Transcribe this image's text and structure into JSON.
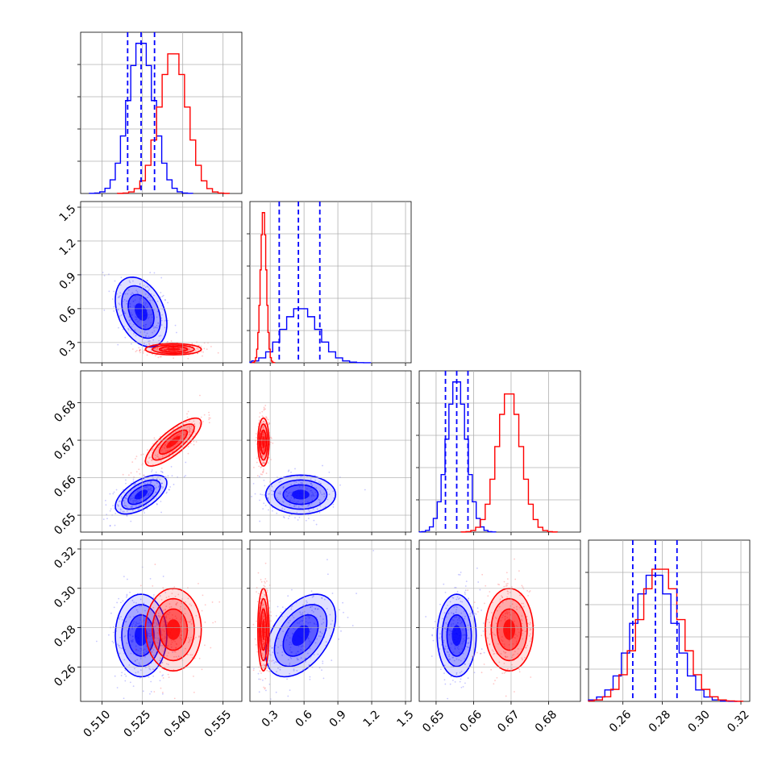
{
  "chart_data": {
    "type": "corner",
    "title": "",
    "grid": true,
    "parameters": [
      {
        "index": 0,
        "range": [
          0.502,
          0.562
        ],
        "ticks": [
          0.51,
          0.525,
          0.54,
          0.555
        ],
        "tick_labels": [
          "0.510",
          "0.525",
          "0.540",
          "0.555"
        ]
      },
      {
        "index": 1,
        "range": [
          0.12,
          1.55
        ],
        "ticks": [
          0.3,
          0.6,
          0.9,
          1.2,
          1.5
        ],
        "tick_labels": [
          "0.3",
          "0.6",
          "0.9",
          "1.2",
          "1.5"
        ]
      },
      {
        "index": 2,
        "range": [
          0.6455,
          0.6885
        ],
        "ticks": [
          0.65,
          0.66,
          0.67,
          0.68
        ],
        "tick_labels": [
          "0.65",
          "0.66",
          "0.67",
          "0.68"
        ]
      },
      {
        "index": 3,
        "range": [
          0.2425,
          0.3245
        ],
        "ticks": [
          0.26,
          0.28,
          0.3,
          0.32
        ],
        "tick_labels": [
          "0.26",
          "0.28",
          "0.30",
          "0.32"
        ]
      }
    ],
    "series": [
      {
        "color": "#0000ff",
        "means": [
          0.5245,
          0.57,
          0.6555,
          0.276
        ],
        "stds": [
          0.0048,
          0.155,
          0.0026,
          0.0105
        ],
        "quantiles": [
          [
            0.5195,
            0.5245,
            0.5295
          ],
          [
            0.38,
            0.55,
            0.74
          ],
          [
            0.6525,
            0.6555,
            0.6585
          ],
          [
            0.265,
            0.2765,
            0.2875
          ]
        ],
        "correlations": {
          "0-1": -0.35,
          "0-2": 0.6,
          "0-3": 0.0,
          "1-2": 0.0,
          "1-3": 0.45,
          "2-3": 0.0
        },
        "hist_peak": [
          1.0,
          0.36,
          1.0,
          0.84
        ]
      },
      {
        "color": "#ff0000",
        "means": [
          0.5365,
          0.24,
          0.6695,
          0.279
        ],
        "stds": [
          0.0052,
          0.025,
          0.0032,
          0.0105
        ],
        "quantiles": [
          [
            0.531,
            0.5365,
            0.542
          ],
          [
            0.21,
            0.24,
            0.27
          ],
          [
            0.6665,
            0.6695,
            0.6725
          ],
          [
            0.2685,
            0.279,
            0.2895
          ]
        ],
        "correlations": {
          "0-1": 0.0,
          "0-2": 0.8,
          "0-3": 0.0,
          "1-2": 0.0,
          "1-3": 0.0,
          "2-3": 0.0
        },
        "hist_peak": [
          0.93,
          1.0,
          0.92,
          0.88
        ]
      }
    ],
    "quantile_lines_series": "blue",
    "contour_levels_sigma": [
      0.5,
      1.0,
      1.5,
      2.0
    ]
  }
}
